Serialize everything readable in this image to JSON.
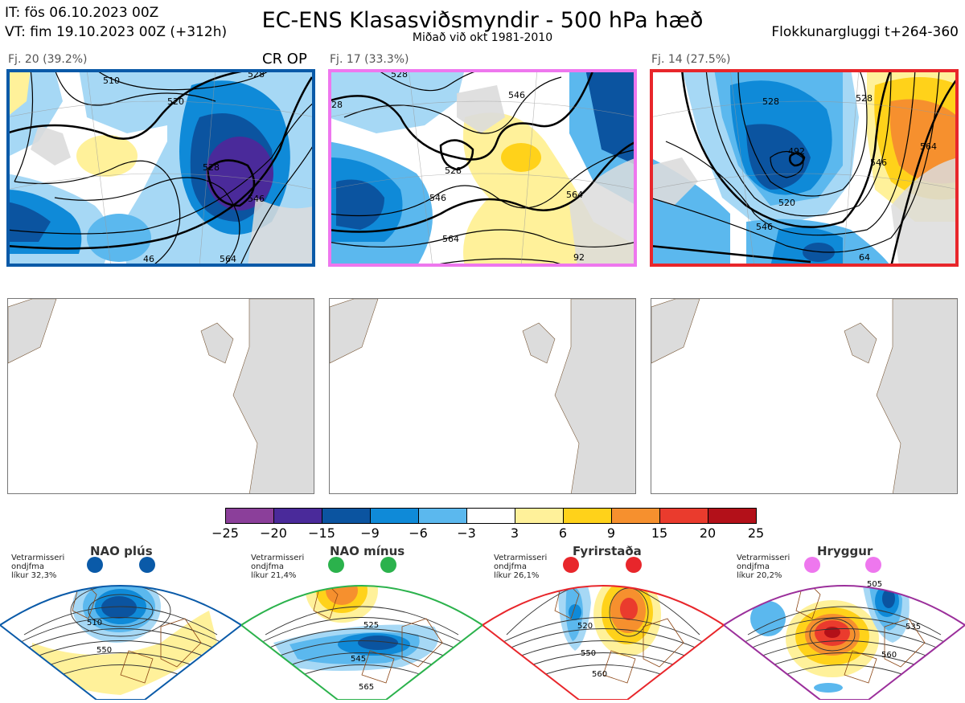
{
  "header": {
    "it_line": "IT: fös 06.10.2023 00Z",
    "vt_line": "VT: fim 19.10.2023 00Z  (+312h)",
    "title": "EC-ENS Klasasviðsmyndir - 500 hPa hæð",
    "subtitle": "Miðað við okt 1981-2010",
    "window": "Flokkunargluggi t+264-360"
  },
  "clusters": [
    {
      "label": "Fj. 20 (39.2%)",
      "tag": "CR OP",
      "border_color": "#0a5aa8",
      "contours": [
        "510",
        "520",
        "528",
        "528",
        "546",
        "564",
        "46",
        "54"
      ]
    },
    {
      "label": "Fj. 17 (33.3%)",
      "tag": "",
      "border_color": "#ee77ee",
      "contours": [
        "28",
        "528",
        "546",
        "528",
        "546",
        "564",
        "564",
        "92"
      ]
    },
    {
      "label": "Fj. 14 (27.5%)",
      "tag": "",
      "border_color": "#e8262b",
      "contours": [
        "492",
        "528",
        "520",
        "546",
        "546",
        "564",
        "528",
        "64"
      ]
    }
  ],
  "colorbar": {
    "ticks": [
      "−25",
      "−20",
      "−15",
      "−9",
      "−6",
      "−3",
      "3",
      "6",
      "9",
      "15",
      "20",
      "25"
    ],
    "colors": [
      "#8b3f9a",
      "#4a2a9a",
      "#0b54a0",
      "#0f8ad8",
      "#5bb8ee",
      "#a6d8f5",
      "#ffffff",
      "#fff19a",
      "#ffd21a",
      "#f6902e",
      "#ea3b2d",
      "#b31019"
    ]
  },
  "regimes": [
    {
      "name": "NAO plús",
      "note": [
        "Vetrarmisseri",
        "ondjfma",
        "líkur 32,3%"
      ],
      "color": "#0a5aa8",
      "contours": [
        "510",
        "550"
      ]
    },
    {
      "name": "NAO mínus",
      "note": [
        "Vetrarmisseri",
        "ondjfma",
        "líkur 21,4%"
      ],
      "color": "#2bb24c",
      "contours": [
        "525",
        "545",
        "565"
      ]
    },
    {
      "name": "Fyrirstaða",
      "note": [
        "Vetrarmisseri",
        "ondjfma",
        "líkur 26,1%"
      ],
      "color": "#e8262b",
      "contours": [
        "520",
        "550",
        "560"
      ]
    },
    {
      "name": "Hryggur",
      "note": [
        "Vetrarmisseri",
        "ondjfma",
        "líkur 20,2%"
      ],
      "color": "#9b2f9b",
      "contours": [
        "505",
        "535",
        "560"
      ]
    }
  ]
}
